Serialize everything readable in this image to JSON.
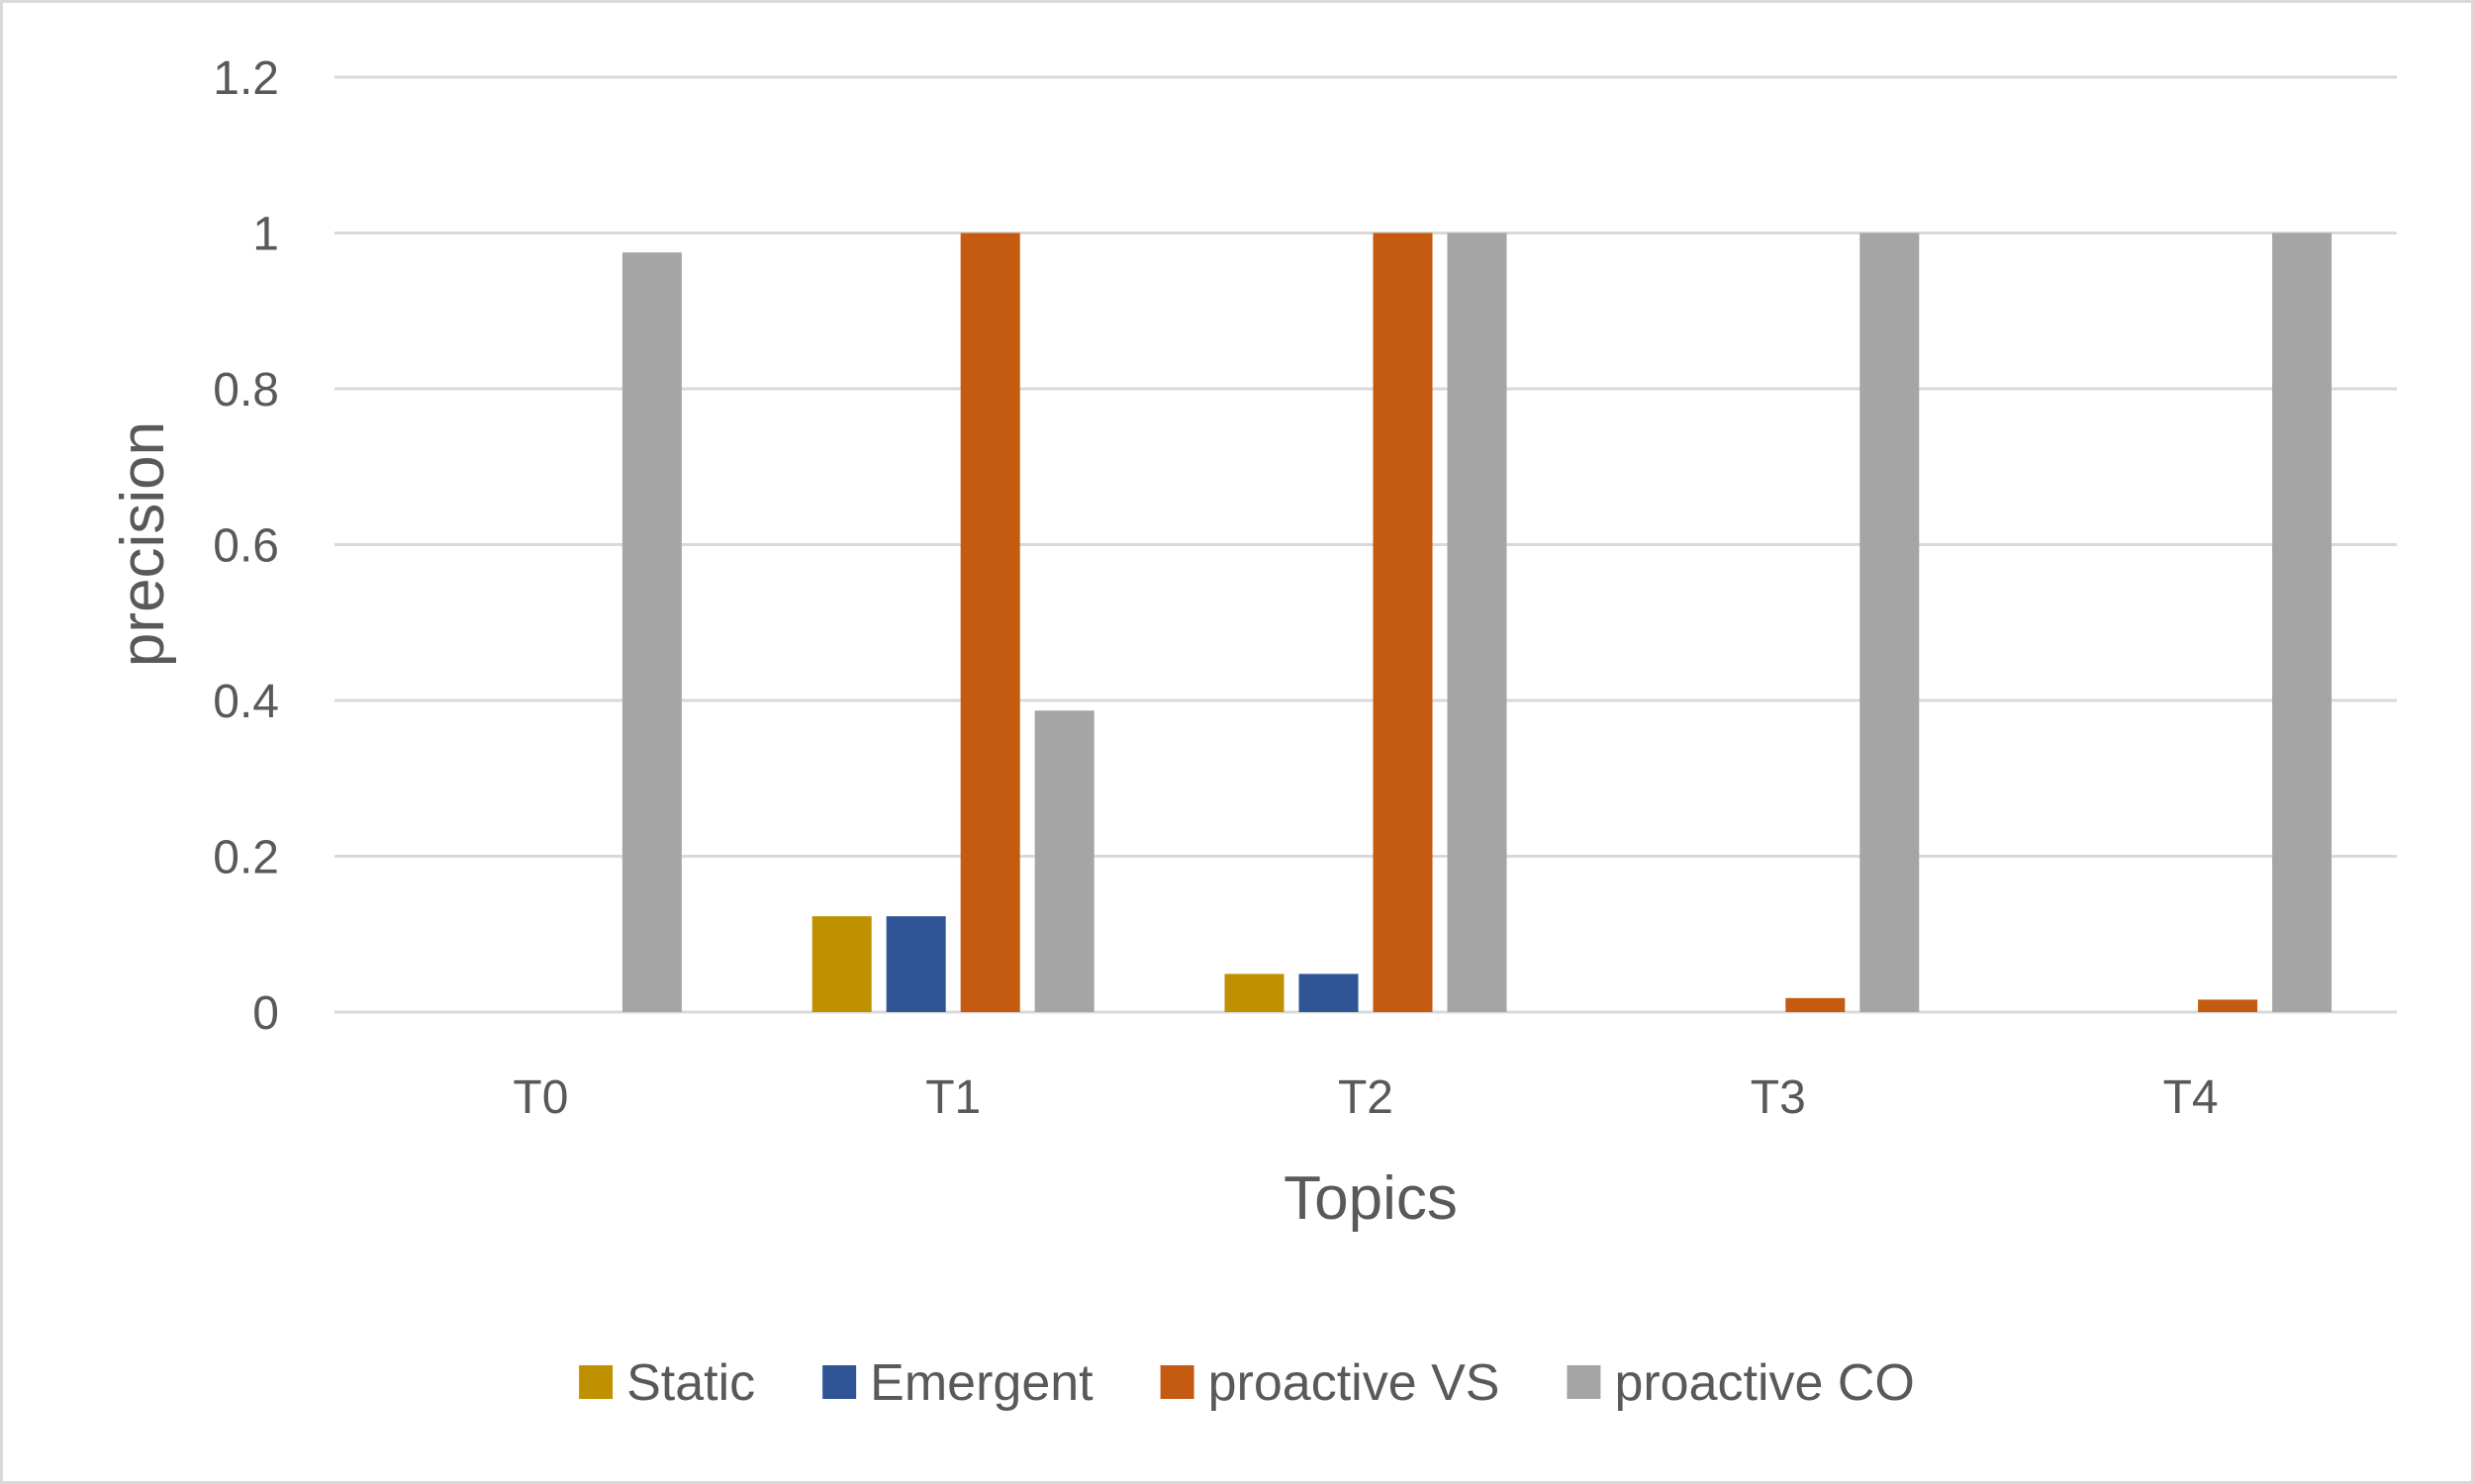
{
  "chart_data": {
    "type": "bar",
    "title": "",
    "xlabel": "Topics",
    "ylabel": "precision",
    "ylim": [
      0,
      1.2
    ],
    "yticks": [
      0,
      0.2,
      0.4,
      0.6,
      0.8,
      1,
      1.2
    ],
    "ytick_labels": [
      "0",
      "0.2",
      "0.4",
      "0.6",
      "0.8",
      "1",
      "1.2"
    ],
    "grid": true,
    "legend_position": "bottom",
    "categories": [
      "T0",
      "T1",
      "T2",
      "T3",
      "T4"
    ],
    "series": [
      {
        "name": "Static",
        "color": "#bf9000",
        "values": [
          0,
          0.123,
          0.049,
          0,
          0
        ]
      },
      {
        "name": "Emergent",
        "color": "#2f5597",
        "values": [
          0,
          0.123,
          0.049,
          0,
          0
        ]
      },
      {
        "name": "proactive VS",
        "color": "#c55a11",
        "values": [
          0,
          1,
          1,
          0.018,
          0.016
        ]
      },
      {
        "name": "proactive CO",
        "color": "#a5a5a5",
        "values": [
          0.975,
          0.387,
          1,
          1,
          1
        ]
      }
    ]
  }
}
